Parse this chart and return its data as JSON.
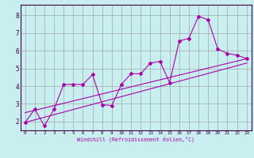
{
  "xlabel": "Windchill (Refroidissement éolien,°C)",
  "background_color": "#c8eef0",
  "line_color": "#aa00aa",
  "grid_color": "#999999",
  "xlim": [
    -0.5,
    23.5
  ],
  "ylim": [
    1.5,
    8.6
  ],
  "yticks": [
    2,
    3,
    4,
    5,
    6,
    7,
    8
  ],
  "xticks": [
    0,
    1,
    2,
    3,
    4,
    5,
    6,
    7,
    8,
    9,
    10,
    11,
    12,
    13,
    14,
    15,
    16,
    17,
    18,
    19,
    20,
    21,
    22,
    23
  ],
  "series1_x": [
    0,
    1,
    2,
    3,
    4,
    5,
    6,
    7,
    8,
    9,
    10,
    11,
    12,
    13,
    14,
    15,
    16,
    17,
    18,
    19,
    20,
    21,
    22,
    23
  ],
  "series1_y": [
    1.95,
    2.7,
    1.75,
    2.7,
    4.1,
    4.1,
    4.1,
    4.65,
    2.95,
    2.9,
    4.1,
    4.7,
    4.7,
    5.3,
    5.4,
    4.2,
    6.55,
    6.7,
    7.95,
    7.75,
    6.1,
    5.85,
    5.75,
    5.55
  ],
  "series2_x": [
    0,
    23
  ],
  "series2_y": [
    1.95,
    5.3
  ],
  "series3_x": [
    0,
    23
  ],
  "series3_y": [
    2.5,
    5.55
  ]
}
